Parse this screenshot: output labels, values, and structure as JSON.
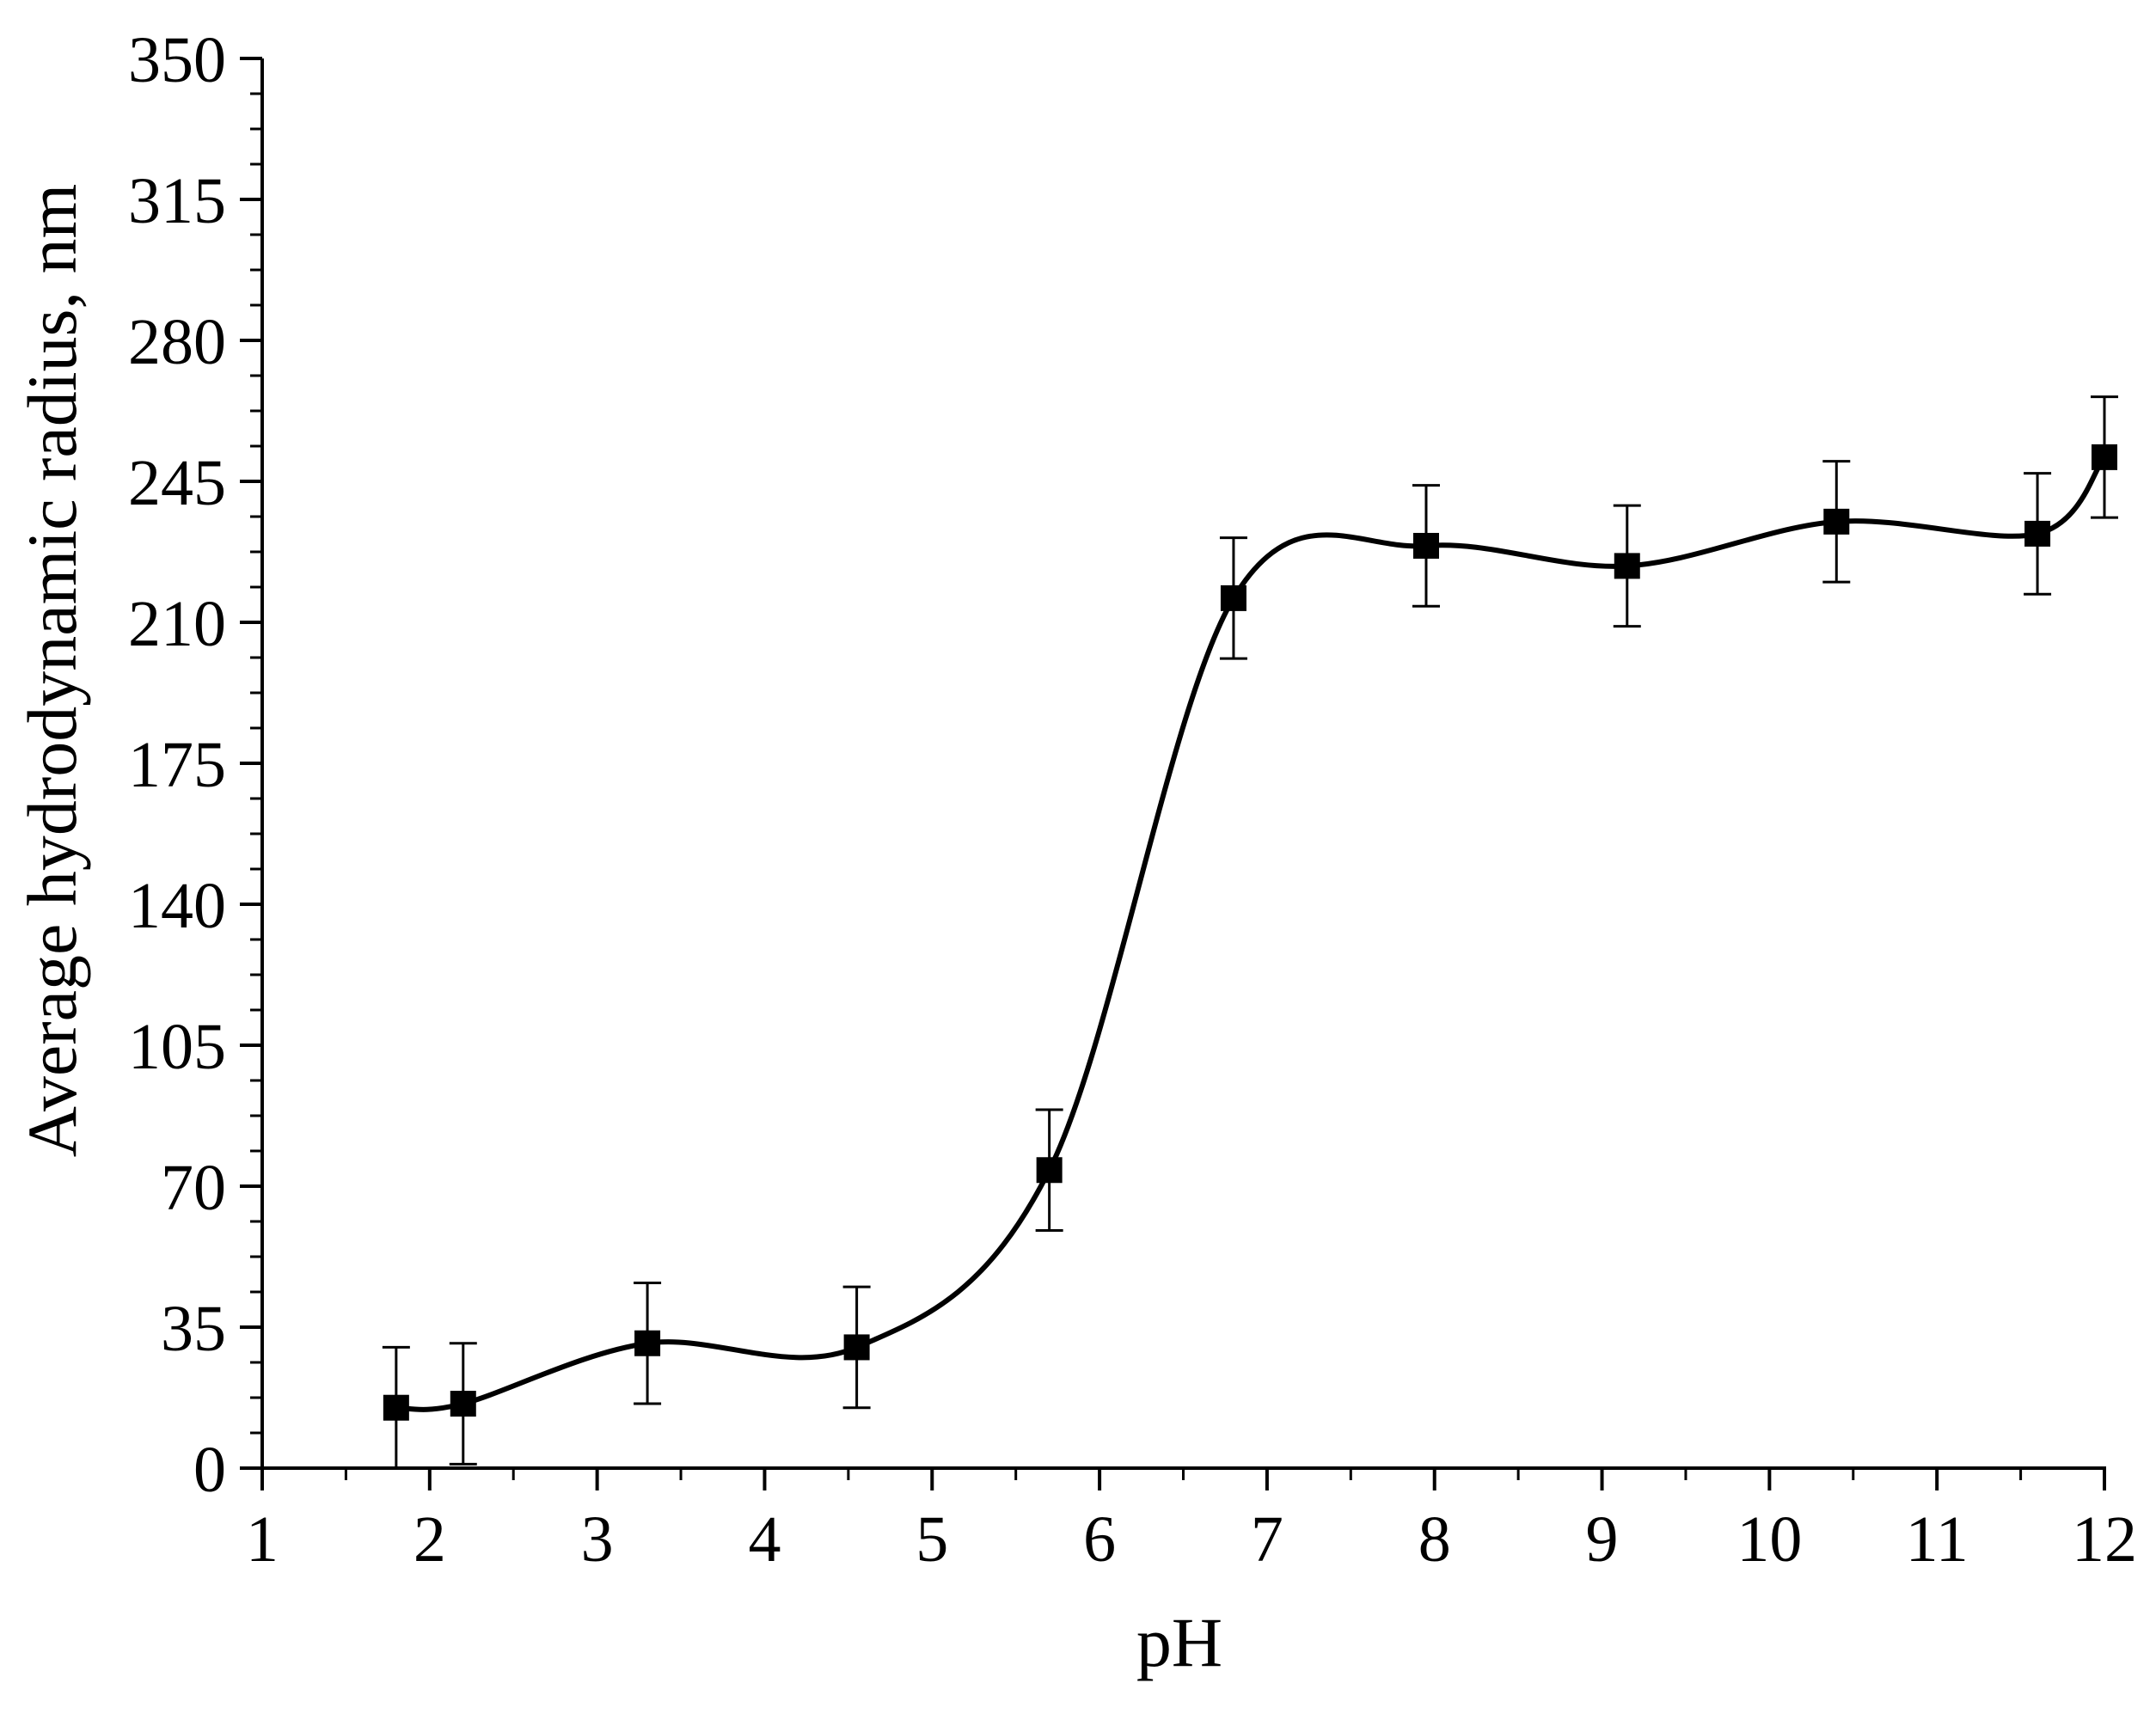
{
  "chart_data": {
    "type": "scatter",
    "title": "",
    "xlabel": "pH",
    "ylabel": "Average hydrodynamic radius, nm",
    "xlim": [
      1,
      12
    ],
    "ylim": [
      0,
      350
    ],
    "x_ticks": [
      1,
      2,
      3,
      4,
      5,
      6,
      7,
      8,
      9,
      10,
      11,
      12
    ],
    "x_tick_labels": [
      "1",
      "2",
      "3",
      "4",
      "5",
      "6",
      "7",
      "8",
      "9",
      "10",
      "11",
      "12"
    ],
    "y_ticks": [
      0,
      35,
      70,
      105,
      140,
      175,
      210,
      245,
      280,
      315,
      350
    ],
    "y_tick_labels": [
      "0",
      "35",
      "70",
      "105",
      "140",
      "175",
      "210",
      "245",
      "280",
      "315",
      "350"
    ],
    "grid": false,
    "legend": "none",
    "marker": "square",
    "line": "smooth spline through points",
    "color": "#000000",
    "series": [
      {
        "x": [
          1.8,
          2.2,
          3.3,
          4.55,
          5.7,
          6.8,
          7.95,
          9.15,
          10.4,
          11.6,
          12.0
        ],
        "y": [
          15,
          16,
          31,
          30,
          74,
          216,
          229,
          224,
          235,
          232,
          251
        ],
        "error": [
          15,
          15,
          15,
          15,
          15,
          15,
          15,
          15,
          15,
          15,
          15
        ]
      }
    ]
  }
}
